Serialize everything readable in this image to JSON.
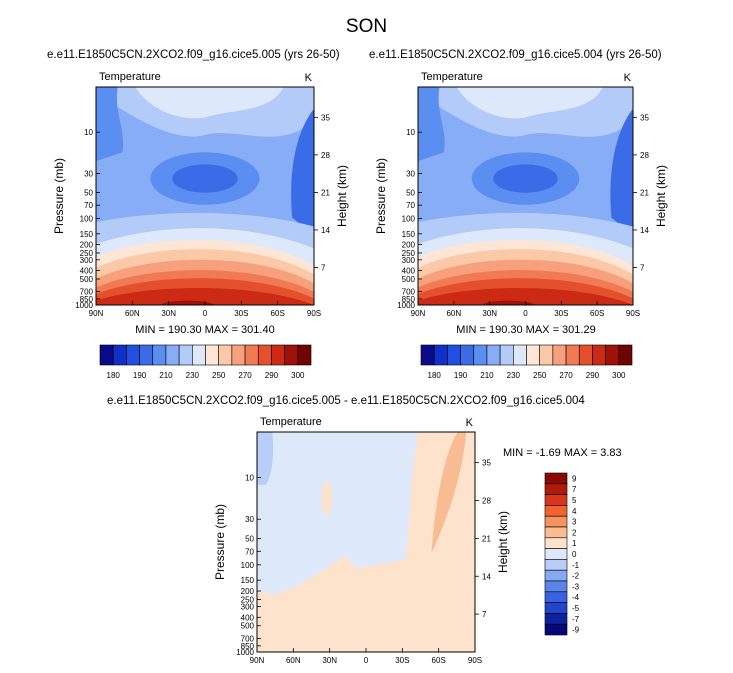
{
  "figure": {
    "title": "SON",
    "left_title": "e.e11.E1850C5CN.2XCO2.f09_g16.cice5.005 (yrs 26-50)",
    "right_title": "e.e11.E1850C5CN.2XCO2.f09_g16.cice5.004 (yrs 26-50)",
    "diff_title": "e.e11.E1850C5CN.2XCO2.f09_g16.cice5.005 - e.e11.E1850C5CN.2XCO2.f09_g16.cice5.004"
  },
  "chart_data": [
    {
      "type": "heatmap",
      "panel": "left",
      "field_label": "Temperature",
      "units": "K",
      "ylabel": "Pressure (mb)",
      "y2label": "Height (km)",
      "x_ticks": [
        "90N",
        "60N",
        "30N",
        "0",
        "30S",
        "60S",
        "90S"
      ],
      "y_ticks": [
        "10",
        "30",
        "50",
        "70",
        "100",
        "150",
        "200",
        "250",
        "300",
        "400",
        "500",
        "700",
        "850",
        "1000"
      ],
      "height_ticks": [
        "35",
        "28",
        "21",
        "14",
        "7"
      ],
      "stats": "MIN = 190.30   MAX = 301.40",
      "min": 190.3,
      "max": 301.4,
      "colorbar_levels": [
        "180",
        "190",
        "210",
        "230",
        "250",
        "270",
        "290",
        "300"
      ]
    },
    {
      "type": "heatmap",
      "panel": "right",
      "field_label": "Temperature",
      "units": "K",
      "ylabel": "Pressure (mb)",
      "y2label": "Height (km)",
      "x_ticks": [
        "90N",
        "60N",
        "30N",
        "0",
        "30S",
        "60S",
        "90S"
      ],
      "y_ticks": [
        "10",
        "30",
        "50",
        "70",
        "100",
        "150",
        "200",
        "250",
        "300",
        "400",
        "500",
        "700",
        "850",
        "1000"
      ],
      "height_ticks": [
        "35",
        "28",
        "21",
        "14",
        "7"
      ],
      "stats": "MIN = 190.30   MAX = 301.29",
      "min": 190.3,
      "max": 301.29,
      "colorbar_levels": [
        "180",
        "190",
        "210",
        "230",
        "250",
        "270",
        "290",
        "300"
      ]
    },
    {
      "type": "heatmap",
      "panel": "difference",
      "field_label": "Temperature",
      "units": "K",
      "ylabel": "Pressure (mb)",
      "y2label": "Height (km)",
      "x_ticks": [
        "90N",
        "60N",
        "30N",
        "0",
        "30S",
        "60S",
        "90S"
      ],
      "y_ticks": [
        "10",
        "30",
        "50",
        "70",
        "100",
        "150",
        "200",
        "250",
        "300",
        "400",
        "500",
        "700",
        "850",
        "1000"
      ],
      "height_ticks": [
        "35",
        "28",
        "21",
        "14",
        "7"
      ],
      "stats": "MIN =  -1.69   MAX =   3.83",
      "min": -1.69,
      "max": 3.83,
      "colorbar_levels": [
        "9",
        "7",
        "5",
        "4",
        "3",
        "2",
        "1",
        "0",
        "-1",
        "-2",
        "-3",
        "-4",
        "-5",
        "-7",
        "-9"
      ]
    }
  ],
  "colors": {
    "temp_bar": [
      "#0a0a8a",
      "#1030c8",
      "#2150e0",
      "#3a6ce8",
      "#5a8ef0",
      "#86adf5",
      "#b2cbf8",
      "#dde8fb",
      "#fde6d6",
      "#fbc8a8",
      "#f6a07c",
      "#f07a54",
      "#e4502e",
      "#cc2a14",
      "#a01208",
      "#6e0404"
    ],
    "diff_bar": [
      "#8a0a04",
      "#b01a0c",
      "#d8361a",
      "#f06230",
      "#f5925e",
      "#f9bb92",
      "#fde3cc",
      "#dde8fb",
      "#b8cef8",
      "#86aaf2",
      "#5a86ec",
      "#3a62e0",
      "#2046cc",
      "#0e22a0",
      "#06087a"
    ]
  }
}
